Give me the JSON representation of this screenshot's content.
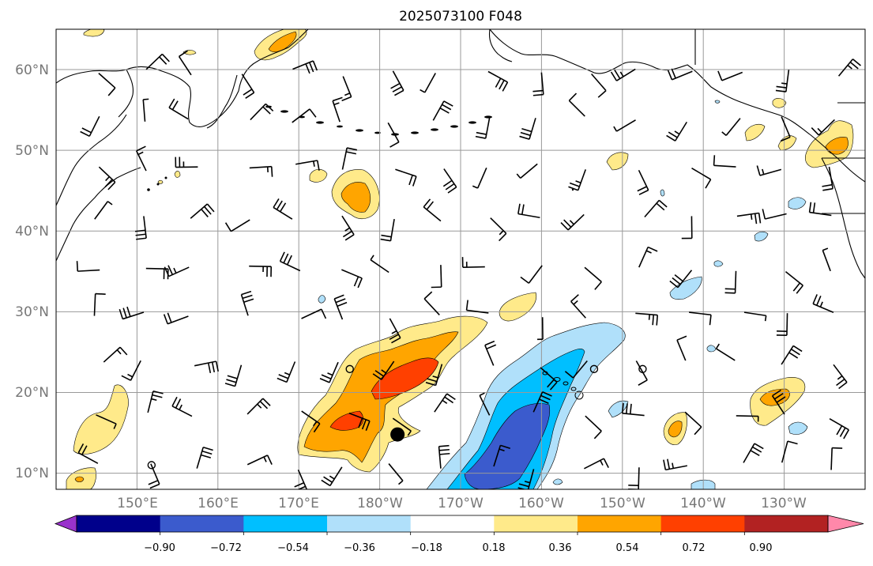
{
  "title": "2025073100 F048",
  "lat_labels": [
    "60°N",
    "50°N",
    "40°N",
    "30°N",
    "20°N",
    "10°N"
  ],
  "lon_labels": [
    "150°E",
    "160°E",
    "170°E",
    "180°W",
    "170°W",
    "160°W",
    "150°W",
    "140°W",
    "130°W"
  ],
  "colorbar": {
    "tick_labels": [
      "−0.90",
      "−0.72",
      "−0.54",
      "−0.36",
      "−0.18",
      "0.18",
      "0.36",
      "0.54",
      "0.72",
      "0.90"
    ],
    "colors": [
      "#9932cc",
      "#00008b",
      "#3b5bcd",
      "#00bfff",
      "#b0e0fa",
      "#ffffff",
      "#ffea8a",
      "#ffa500",
      "#ff4000",
      "#b22222",
      "#ff88aa"
    ]
  },
  "map": {
    "extent": {
      "lon_min": 140,
      "lon_max": 240,
      "lat_min": 8,
      "lat_max": 65
    },
    "gridlines": true,
    "gridline_lons": [
      150,
      160,
      170,
      180,
      190,
      200,
      210,
      220,
      230
    ],
    "gridline_lats": [
      10,
      20,
      30,
      40,
      50,
      60
    ],
    "markers": {
      "dot": {
        "lon": 182.2,
        "lat": 14.8,
        "style": "filled-circle"
      },
      "open_circles": [
        {
          "lon": 176.3,
          "lat": 22.9
        },
        {
          "lon": 206.5,
          "lat": 22.9
        },
        {
          "lon": 212.5,
          "lat": 22.9
        },
        {
          "lon": 151.8,
          "lat": 11.0
        }
      ]
    }
  }
}
